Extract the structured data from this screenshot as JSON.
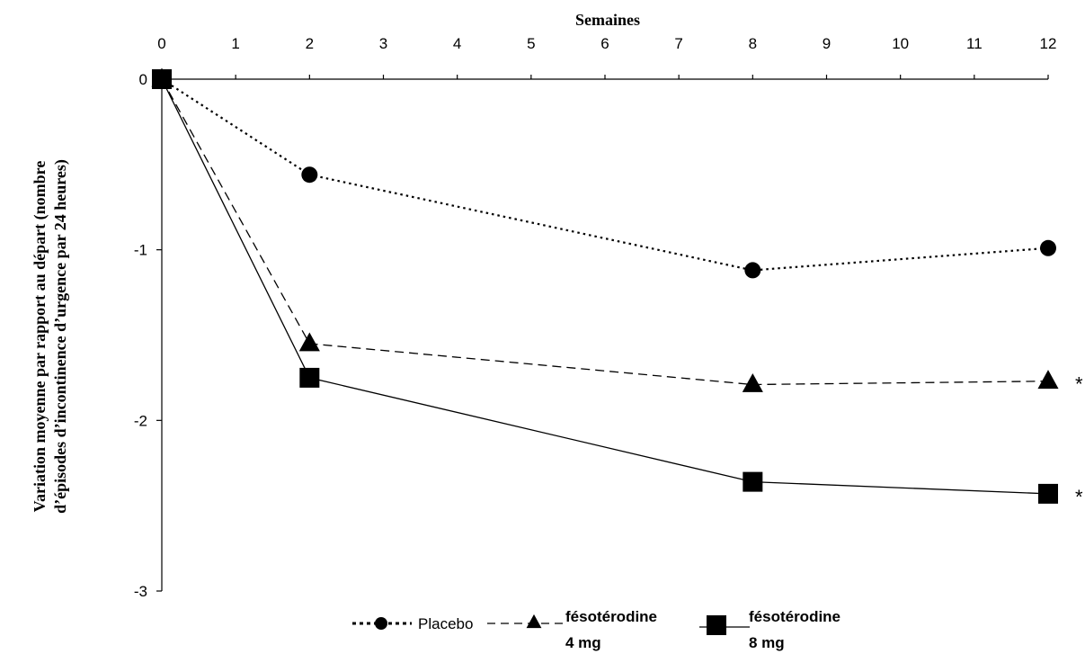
{
  "chart_data": {
    "type": "line",
    "xlabel": "Semaines",
    "ylabel": [
      "Variation moyenne par rapport au départ (nombre",
      "d’épisodes d’incontinence d’urgence par 24 heures)"
    ],
    "xlim": [
      0,
      12
    ],
    "ylim": [
      -3,
      0
    ],
    "xticks": [
      "0",
      "1",
      "2",
      "3",
      "4",
      "5",
      "6",
      "7",
      "8",
      "9",
      "10",
      "11",
      "12"
    ],
    "yticks": [
      "0",
      "-1",
      "-2",
      "-3"
    ],
    "grid": false,
    "x_axis_position": "top",
    "legend_position": "bottom-center",
    "series": [
      {
        "name": "Placebo",
        "marker": "circle",
        "line": "dotted",
        "color": "#000000",
        "points": [
          [
            0,
            0
          ],
          [
            2,
            -0.56
          ],
          [
            8,
            -1.12
          ],
          [
            12,
            -0.99
          ]
        ]
      },
      {
        "name": "fésotérodine 4 mg",
        "legend_lines": [
          "fésotérodine",
          "4 mg"
        ],
        "marker": "triangle",
        "line": "dashed",
        "color": "#000000",
        "points": [
          [
            0,
            0
          ],
          [
            2,
            -1.55
          ],
          [
            8,
            -1.79
          ],
          [
            12,
            -1.77
          ]
        ]
      },
      {
        "name": "fésotérodine 8 mg",
        "legend_lines": [
          "fésotérodine",
          "8 mg"
        ],
        "marker": "square",
        "line": "solid",
        "color": "#000000",
        "points": [
          [
            0,
            0
          ],
          [
            2,
            -1.75
          ],
          [
            8,
            -2.36
          ],
          [
            12,
            -2.43
          ]
        ]
      }
    ],
    "annotations": [
      {
        "text": "*",
        "series": "fésotérodine 4 mg",
        "x": 12
      },
      {
        "text": "*",
        "series": "fésotérodine 8 mg",
        "x": 12
      }
    ]
  }
}
